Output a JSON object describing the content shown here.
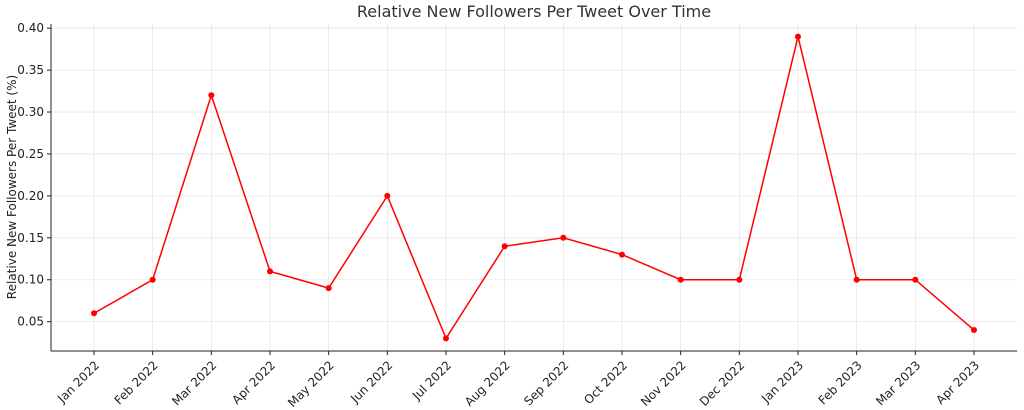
{
  "chart_data": {
    "type": "line",
    "title": "Relative New Followers Per Tweet Over Time",
    "xlabel": "",
    "ylabel": "Relative New Followers Per Tweet (%)",
    "categories": [
      "Jan 2022",
      "Feb 2022",
      "Mar 2022",
      "Apr 2022",
      "May 2022",
      "Jun 2022",
      "Jul 2022",
      "Aug 2022",
      "Sep 2022",
      "Oct 2022",
      "Nov 2022",
      "Dec 2022",
      "Jan 2023",
      "Feb 2023",
      "Mar 2023",
      "Apr 2023"
    ],
    "values": [
      0.06,
      0.1,
      0.32,
      0.11,
      0.09,
      0.2,
      0.03,
      0.14,
      0.15,
      0.13,
      0.1,
      0.1,
      0.39,
      0.1,
      0.1,
      0.04
    ],
    "ylim": [
      0.015,
      0.405
    ],
    "yticks": [
      "0.05",
      "0.10",
      "0.15",
      "0.20",
      "0.25",
      "0.30",
      "0.35",
      "0.40"
    ],
    "grid": true,
    "line_color": "#ff0000",
    "marker": "circle"
  }
}
